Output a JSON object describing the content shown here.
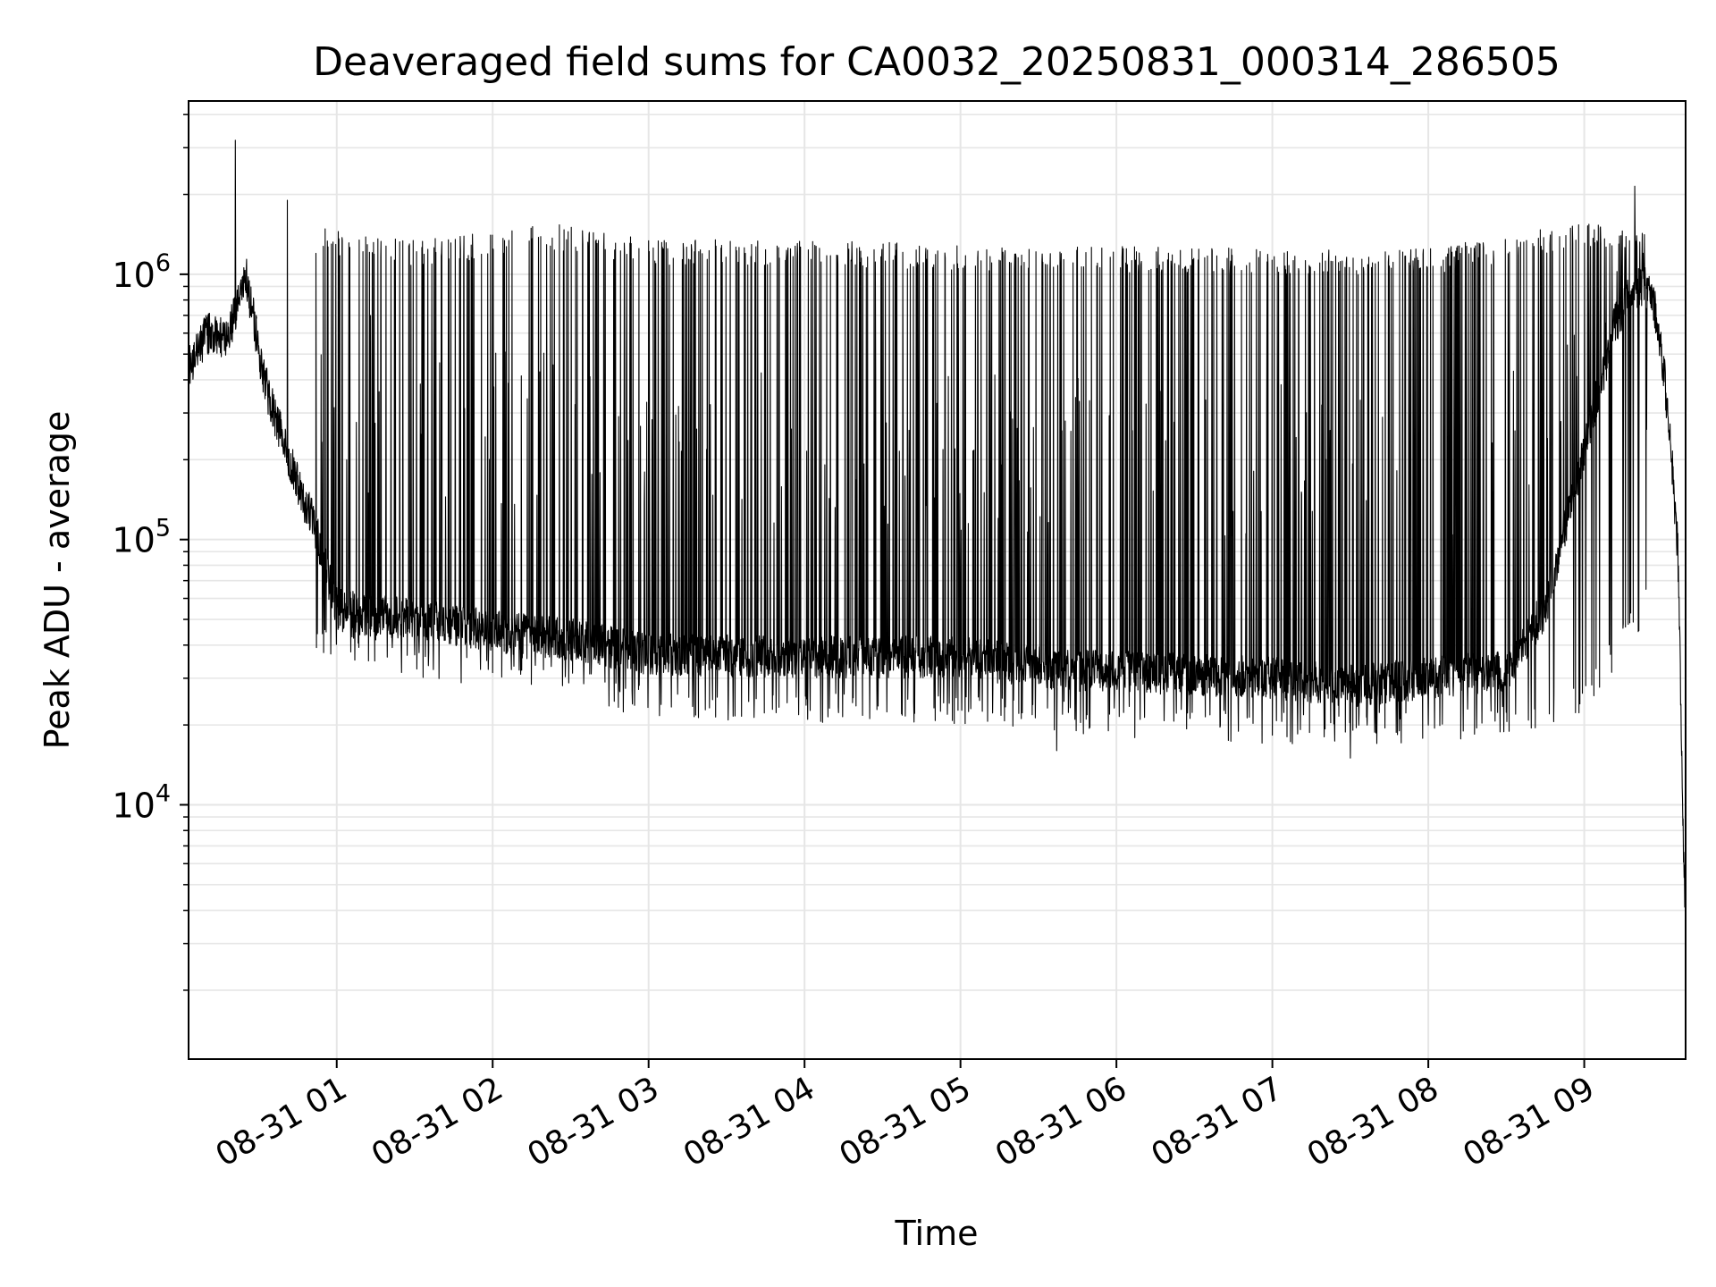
{
  "chart_data": {
    "type": "line",
    "title": "Deaveraged field sums for CA0032_20250831_000314_286505",
    "xlabel": "Time",
    "ylabel": "Peak ADU - average",
    "y_scale": "log",
    "ylim": [
      1100,
      4500000
    ],
    "xlim": [
      "2025-08-31 00:03",
      "2025-08-31 09:39"
    ],
    "grid": true,
    "legend": "none",
    "line_color": "#000000",
    "grid_color": "#e6e6e6",
    "y_ticks": [
      {
        "value": 10000,
        "base": "10",
        "exp": "4"
      },
      {
        "value": 100000,
        "base": "10",
        "exp": "5"
      },
      {
        "value": 1000000,
        "base": "10",
        "exp": "6"
      }
    ],
    "x_ticks": [
      {
        "value": "2025-08-31 01:00",
        "label": "08-31 01"
      },
      {
        "value": "2025-08-31 02:00",
        "label": "08-31 02"
      },
      {
        "value": "2025-08-31 03:00",
        "label": "08-31 03"
      },
      {
        "value": "2025-08-31 04:00",
        "label": "08-31 04"
      },
      {
        "value": "2025-08-31 05:00",
        "label": "08-31 05"
      },
      {
        "value": "2025-08-31 06:00",
        "label": "08-31 06"
      },
      {
        "value": "2025-08-31 07:00",
        "label": "08-31 07"
      },
      {
        "value": "2025-08-31 08:00",
        "label": "08-31 08"
      },
      {
        "value": "2025-08-31 09:00",
        "label": "08-31 09"
      }
    ],
    "series": [
      {
        "baseline": {
          "x": [
            "2025-08-31 00:03",
            "2025-08-31 00:10",
            "2025-08-31 00:18",
            "2025-08-31 00:25",
            "2025-08-31 00:29",
            "2025-08-31 00:32",
            "2025-08-31 00:38",
            "2025-08-31 00:45",
            "2025-08-31 00:52",
            "2025-08-31 00:57",
            "2025-08-31 01:00",
            "2025-08-31 01:10",
            "2025-08-31 01:30",
            "2025-08-31 02:00",
            "2025-08-31 02:30",
            "2025-08-31 03:00",
            "2025-08-31 04:00",
            "2025-08-31 05:00",
            "2025-08-31 05:40",
            "2025-08-31 06:00",
            "2025-08-31 07:00",
            "2025-08-31 07:30",
            "2025-08-31 08:00",
            "2025-08-31 08:30",
            "2025-08-31 08:45",
            "2025-08-31 08:55",
            "2025-08-31 09:05",
            "2025-08-31 09:12",
            "2025-08-31 09:18",
            "2025-08-31 09:24",
            "2025-08-31 09:28",
            "2025-08-31 09:31",
            "2025-08-31 09:34",
            "2025-08-31 09:36",
            "2025-08-31 09:37",
            "2025-08-31 09:38",
            "2025-08-31 09:39"
          ],
          "y": [
            450000,
            600000,
            570000,
            1000000,
            600000,
            400000,
            260000,
            160000,
            110000,
            70000,
            55000,
            52000,
            50000,
            45000,
            42000,
            37000,
            36000,
            36000,
            32000,
            32000,
            30000,
            28000,
            30000,
            32000,
            55000,
            140000,
            350000,
            650000,
            900000,
            880000,
            700000,
            400000,
            180000,
            90000,
            30000,
            8000,
            3500
          ]
        },
        "spikes": {
          "x": [
            "2025-08-31 00:21",
            "2025-08-31 00:29",
            "2025-08-31 00:41",
            "2025-08-31 00:52",
            "2025-08-31 01:13",
            "2025-08-31 04:35",
            "2025-08-31 05:37",
            "2025-08-31 07:30",
            "2025-08-31 09:24"
          ],
          "y": [
            3200000,
            700000,
            1900000,
            1200000,
            700000,
            1300000,
            16000,
            15000,
            260000
          ]
        },
        "envelope": {
          "x": [
            "2025-08-31 00:52",
            "2025-08-31 01:30",
            "2025-08-31 02:00",
            "2025-08-31 02:15",
            "2025-08-31 03:00",
            "2025-08-31 04:00",
            "2025-08-31 05:00",
            "2025-08-31 06:00",
            "2025-08-31 07:00",
            "2025-08-31 08:00",
            "2025-08-31 08:30",
            "2025-08-31 09:00",
            "2025-08-31 09:24"
          ],
          "y_high": [
            1500000,
            1350000,
            1450000,
            1600000,
            1350000,
            1350000,
            1300000,
            1280000,
            1250000,
            1250000,
            1400000,
            1600000,
            1500000
          ],
          "y_low": [
            38000,
            30000,
            28000,
            27000,
            21000,
            20000,
            20000,
            18000,
            17000,
            17000,
            18000,
            22000,
            50000
          ]
        }
      }
    ]
  }
}
